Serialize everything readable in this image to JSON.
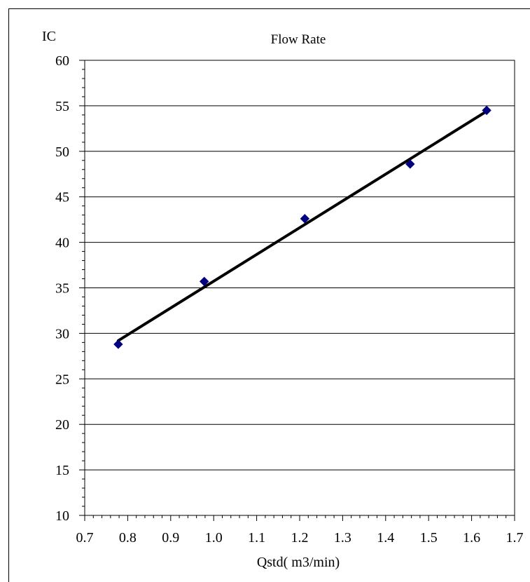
{
  "chart_data": {
    "type": "scatter",
    "title": "Flow Rate",
    "xlabel": "Qstd( m3/min)",
    "ylabel": "IC",
    "side_label": ")",
    "xlim": [
      0.7,
      1.7
    ],
    "ylim": [
      10,
      60
    ],
    "x_ticks": [
      "0.7",
      "0.8",
      "0.9",
      "1.0",
      "1.1",
      "1.2",
      "1.3",
      "1.4",
      "1.5",
      "1.6",
      "1.7"
    ],
    "y_ticks": [
      "10",
      "15",
      "20",
      "25",
      "30",
      "35",
      "40",
      "45",
      "50",
      "55",
      "60"
    ],
    "grid": "horizontal",
    "series": [
      {
        "marker": "diamond",
        "color": "#000080",
        "points": [
          {
            "x": 0.778,
            "y": 28.8
          },
          {
            "x": 0.978,
            "y": 35.7
          },
          {
            "x": 1.212,
            "y": 42.6
          },
          {
            "x": 1.457,
            "y": 48.6
          },
          {
            "x": 1.635,
            "y": 54.5
          }
        ]
      }
    ],
    "trendline": {
      "type": "linear",
      "color": "#000000",
      "from": {
        "x": 0.778,
        "y": 29.2
      },
      "to": {
        "x": 1.635,
        "y": 54.4
      }
    }
  }
}
